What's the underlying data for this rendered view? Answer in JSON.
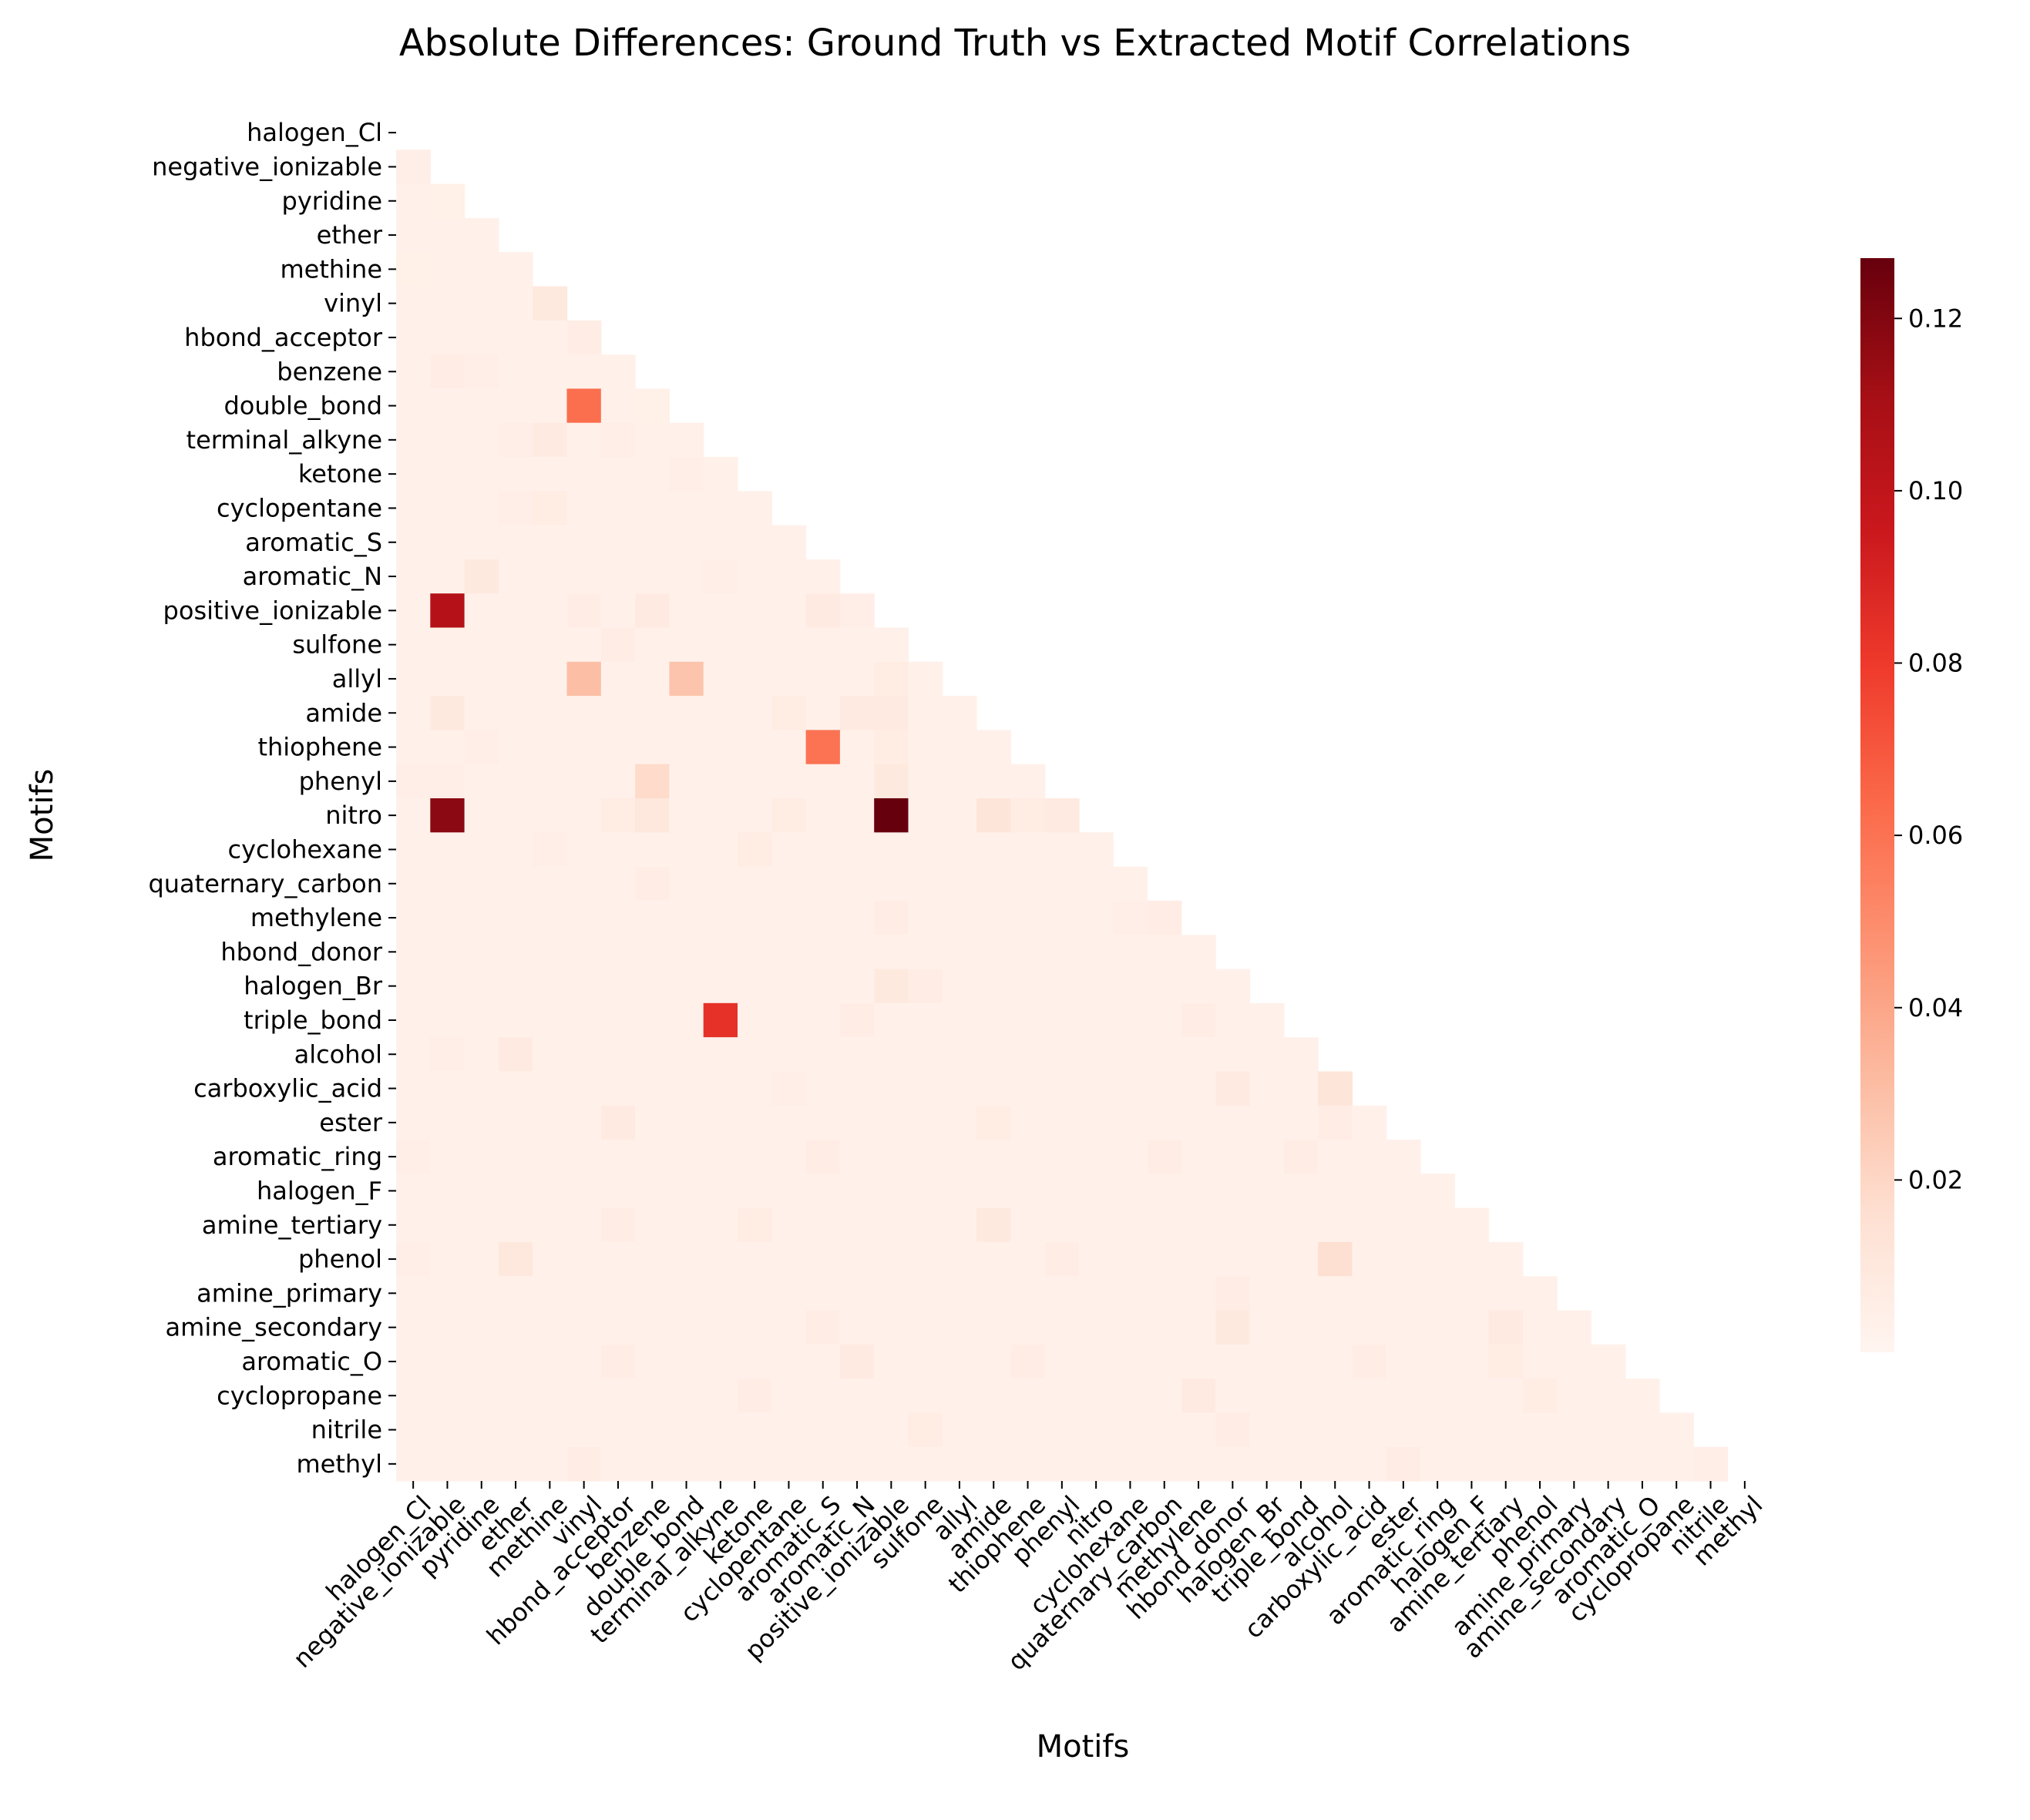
{
  "colors": {
    "cmap": "Reds",
    "background": "#ffffff",
    "text": "#000000"
  },
  "chart_data": {
    "type": "heatmap",
    "title": "Absolute Differences: Ground Truth vs Extracted Motif Correlations",
    "xlabel": "Motifs",
    "ylabel": "Motifs",
    "mask": "upper triangle including diagonal",
    "colorbar": {
      "vmin": 0.0,
      "vmax": 0.127,
      "ticks": [
        0.02,
        0.04,
        0.06,
        0.08,
        0.1,
        0.12
      ],
      "tick_labels": [
        "0.02",
        "0.04",
        "0.06",
        "0.08",
        "0.10",
        "0.12"
      ]
    },
    "labels": [
      "halogen_Cl",
      "negative_ionizable",
      "pyridine",
      "ether",
      "methine",
      "vinyl",
      "hbond_acceptor",
      "benzene",
      "double_bond",
      "terminal_alkyne",
      "ketone",
      "cyclopentane",
      "aromatic_S",
      "aromatic_N",
      "positive_ionizable",
      "sulfone",
      "allyl",
      "amide",
      "thiophene",
      "phenyl",
      "nitro",
      "cyclohexane",
      "quaternary_carbon",
      "methylene",
      "hbond_donor",
      "halogen_Br",
      "triple_bond",
      "alcohol",
      "carboxylic_acid",
      "ester",
      "aromatic_ring",
      "halogen_F",
      "amine_tertiary",
      "phenol",
      "amine_primary",
      "amine_secondary",
      "aromatic_O",
      "cyclopropane",
      "nitrile",
      "methyl"
    ],
    "baseline": 0.003,
    "cells": [
      {
        "row": "negative_ionizable",
        "col": "halogen_Cl",
        "value": 0.005
      },
      {
        "row": "pyridine",
        "col": "negative_ionizable",
        "value": 0.004
      },
      {
        "row": "methine",
        "col": "halogen_Cl",
        "value": 0.004
      },
      {
        "row": "vinyl",
        "col": "methine",
        "value": 0.009
      },
      {
        "row": "hbond_acceptor",
        "col": "vinyl",
        "value": 0.006
      },
      {
        "row": "benzene",
        "col": "negative_ionizable",
        "value": 0.006
      },
      {
        "row": "benzene",
        "col": "pyridine",
        "value": 0.005
      },
      {
        "row": "double_bond",
        "col": "vinyl",
        "value": 0.062
      },
      {
        "row": "double_bond",
        "col": "benzene",
        "value": 0.004
      },
      {
        "row": "terminal_alkyne",
        "col": "methine",
        "value": 0.008
      },
      {
        "row": "terminal_alkyne",
        "col": "ether",
        "value": 0.005
      },
      {
        "row": "terminal_alkyne",
        "col": "hbond_acceptor",
        "value": 0.005
      },
      {
        "row": "ketone",
        "col": "double_bond",
        "value": 0.005
      },
      {
        "row": "cyclopentane",
        "col": "methine",
        "value": 0.007
      },
      {
        "row": "cyclopentane",
        "col": "ether",
        "value": 0.005
      },
      {
        "row": "aromatic_N",
        "col": "pyridine",
        "value": 0.009
      },
      {
        "row": "aromatic_N",
        "col": "terminal_alkyne",
        "value": 0.005
      },
      {
        "row": "positive_ionizable",
        "col": "negative_ionizable",
        "value": 0.105
      },
      {
        "row": "positive_ionizable",
        "col": "benzene",
        "value": 0.008
      },
      {
        "row": "positive_ionizable",
        "col": "vinyl",
        "value": 0.006
      },
      {
        "row": "positive_ionizable",
        "col": "aromatic_S",
        "value": 0.008
      },
      {
        "row": "positive_ionizable",
        "col": "aromatic_N",
        "value": 0.005
      },
      {
        "row": "sulfone",
        "col": "hbond_acceptor",
        "value": 0.006
      },
      {
        "row": "allyl",
        "col": "vinyl",
        "value": 0.03
      },
      {
        "row": "allyl",
        "col": "double_bond",
        "value": 0.028
      },
      {
        "row": "allyl",
        "col": "positive_ionizable",
        "value": 0.007
      },
      {
        "row": "amide",
        "col": "negative_ionizable",
        "value": 0.009
      },
      {
        "row": "amide",
        "col": "cyclopentane",
        "value": 0.007
      },
      {
        "row": "amide",
        "col": "aromatic_N",
        "value": 0.008
      },
      {
        "row": "amide",
        "col": "positive_ionizable",
        "value": 0.008
      },
      {
        "row": "thiophene",
        "col": "aromatic_S",
        "value": 0.06
      },
      {
        "row": "thiophene",
        "col": "positive_ionizable",
        "value": 0.007
      },
      {
        "row": "thiophene",
        "col": "pyridine",
        "value": 0.005
      },
      {
        "row": "phenyl",
        "col": "benzene",
        "value": 0.018
      },
      {
        "row": "phenyl",
        "col": "positive_ionizable",
        "value": 0.009
      },
      {
        "row": "phenyl",
        "col": "halogen_Cl",
        "value": 0.005
      },
      {
        "row": "phenyl",
        "col": "negative_ionizable",
        "value": 0.005
      },
      {
        "row": "nitro",
        "col": "negative_ionizable",
        "value": 0.118
      },
      {
        "row": "nitro",
        "col": "positive_ionizable",
        "value": 0.127
      },
      {
        "row": "nitro",
        "col": "benzene",
        "value": 0.01
      },
      {
        "row": "nitro",
        "col": "hbond_acceptor",
        "value": 0.007
      },
      {
        "row": "nitro",
        "col": "amide",
        "value": 0.012
      },
      {
        "row": "nitro",
        "col": "thiophene",
        "value": 0.007
      },
      {
        "row": "nitro",
        "col": "phenyl",
        "value": 0.008
      },
      {
        "row": "nitro",
        "col": "cyclopentane",
        "value": 0.007
      },
      {
        "row": "cyclohexane",
        "col": "ketone",
        "value": 0.007
      },
      {
        "row": "cyclohexane",
        "col": "methine",
        "value": 0.005
      },
      {
        "row": "quaternary_carbon",
        "col": "benzene",
        "value": 0.006
      },
      {
        "row": "methylene",
        "col": "positive_ionizable",
        "value": 0.006
      },
      {
        "row": "methylene",
        "col": "cyclohexane",
        "value": 0.005
      },
      {
        "row": "methylene",
        "col": "quaternary_carbon",
        "value": 0.006
      },
      {
        "row": "halogen_Br",
        "col": "positive_ionizable",
        "value": 0.009
      },
      {
        "row": "halogen_Br",
        "col": "sulfone",
        "value": 0.006
      },
      {
        "row": "triple_bond",
        "col": "terminal_alkyne",
        "value": 0.084
      },
      {
        "row": "triple_bond",
        "col": "methylene",
        "value": 0.006
      },
      {
        "row": "triple_bond",
        "col": "aromatic_N",
        "value": 0.006
      },
      {
        "row": "alcohol",
        "col": "ether",
        "value": 0.008
      },
      {
        "row": "alcohol",
        "col": "negative_ionizable",
        "value": 0.005
      },
      {
        "row": "carboxylic_acid",
        "col": "alcohol",
        "value": 0.012
      },
      {
        "row": "carboxylic_acid",
        "col": "hbond_donor",
        "value": 0.008
      },
      {
        "row": "carboxylic_acid",
        "col": "cyclopentane",
        "value": 0.005
      },
      {
        "row": "ester",
        "col": "hbond_acceptor",
        "value": 0.008
      },
      {
        "row": "ester",
        "col": "amide",
        "value": 0.007
      },
      {
        "row": "ester",
        "col": "alcohol",
        "value": 0.006
      },
      {
        "row": "aromatic_ring",
        "col": "aromatic_S",
        "value": 0.006
      },
      {
        "row": "aromatic_ring",
        "col": "quaternary_carbon",
        "value": 0.006
      },
      {
        "row": "aromatic_ring",
        "col": "triple_bond",
        "value": 0.006
      },
      {
        "row": "aromatic_ring",
        "col": "halogen_Cl",
        "value": 0.005
      },
      {
        "row": "amine_tertiary",
        "col": "amide",
        "value": 0.009
      },
      {
        "row": "amine_tertiary",
        "col": "ketone",
        "value": 0.007
      },
      {
        "row": "amine_tertiary",
        "col": "hbond_acceptor",
        "value": 0.006
      },
      {
        "row": "phenol",
        "col": "alcohol",
        "value": 0.016
      },
      {
        "row": "phenol",
        "col": "ether",
        "value": 0.01
      },
      {
        "row": "phenol",
        "col": "phenyl",
        "value": 0.006
      },
      {
        "row": "phenol",
        "col": "halogen_Cl",
        "value": 0.005
      },
      {
        "row": "amine_primary",
        "col": "hbond_donor",
        "value": 0.006
      },
      {
        "row": "amine_secondary",
        "col": "hbond_donor",
        "value": 0.009
      },
      {
        "row": "amine_secondary",
        "col": "amine_tertiary",
        "value": 0.008
      },
      {
        "row": "amine_secondary",
        "col": "aromatic_S",
        "value": 0.006
      },
      {
        "row": "aromatic_O",
        "col": "aromatic_N",
        "value": 0.008
      },
      {
        "row": "aromatic_O",
        "col": "amine_tertiary",
        "value": 0.007
      },
      {
        "row": "aromatic_O",
        "col": "thiophene",
        "value": 0.006
      },
      {
        "row": "aromatic_O",
        "col": "hbond_acceptor",
        "value": 0.006
      },
      {
        "row": "aromatic_O",
        "col": "carboxylic_acid",
        "value": 0.006
      },
      {
        "row": "cyclopropane",
        "col": "methylene",
        "value": 0.008
      },
      {
        "row": "cyclopropane",
        "col": "phenol",
        "value": 0.007
      },
      {
        "row": "cyclopropane",
        "col": "ketone",
        "value": 0.006
      },
      {
        "row": "nitrile",
        "col": "sulfone",
        "value": 0.007
      },
      {
        "row": "nitrile",
        "col": "hbond_donor",
        "value": 0.006
      },
      {
        "row": "methyl",
        "col": "vinyl",
        "value": 0.006
      },
      {
        "row": "methyl",
        "col": "ester",
        "value": 0.006
      },
      {
        "row": "methyl",
        "col": "nitrile",
        "value": 0.005
      }
    ]
  }
}
